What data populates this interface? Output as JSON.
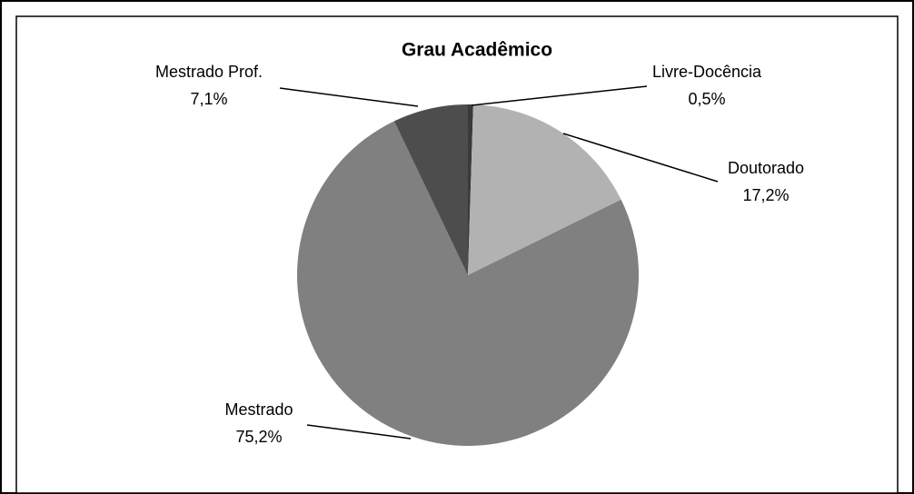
{
  "chart_data": {
    "type": "pie",
    "title": "Grau Acadêmico",
    "categories": [
      "Livre-Docência",
      "Doutorado",
      "Mestrado",
      "Mestrado Prof."
    ],
    "values": [
      0.5,
      17.2,
      75.2,
      7.1
    ],
    "value_labels": [
      "0,5%",
      "17,2%",
      "75,2%",
      "7,1%"
    ],
    "colors": [
      "#3a3a3a",
      "#b2b2b2",
      "#808080",
      "#4d4d4d"
    ]
  }
}
